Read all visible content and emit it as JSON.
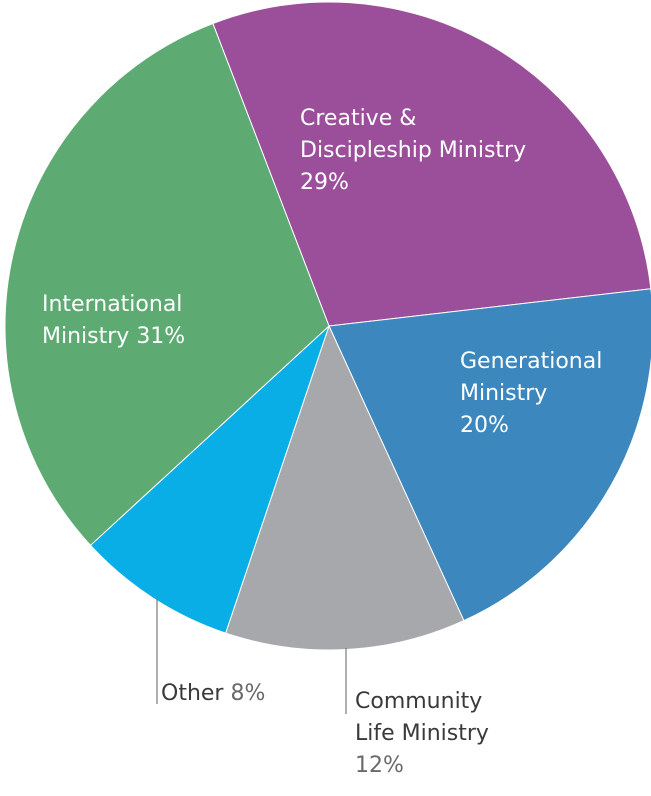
{
  "chart_data": {
    "type": "pie",
    "title": "",
    "slices": [
      {
        "label_lines": [
          "Creative &",
          "Discipleship Ministry"
        ],
        "percent_label": "29%",
        "value": 29,
        "color": "#9b4f9a"
      },
      {
        "label_lines": [
          "Generational",
          "Ministry"
        ],
        "percent_label": "20%",
        "value": 20,
        "color": "#3b87be"
      },
      {
        "label_lines": [
          "Community",
          "Life Ministry"
        ],
        "percent_label": "12%",
        "value": 12,
        "color": "#a6a8ab"
      },
      {
        "label_lines": [
          "Other"
        ],
        "percent_label": "8%",
        "value": 8,
        "color": "#0aaee6"
      },
      {
        "label_lines": [
          "International",
          "Ministry"
        ],
        "percent_label": "31%",
        "value": 31,
        "color": "#5dab73"
      }
    ]
  }
}
